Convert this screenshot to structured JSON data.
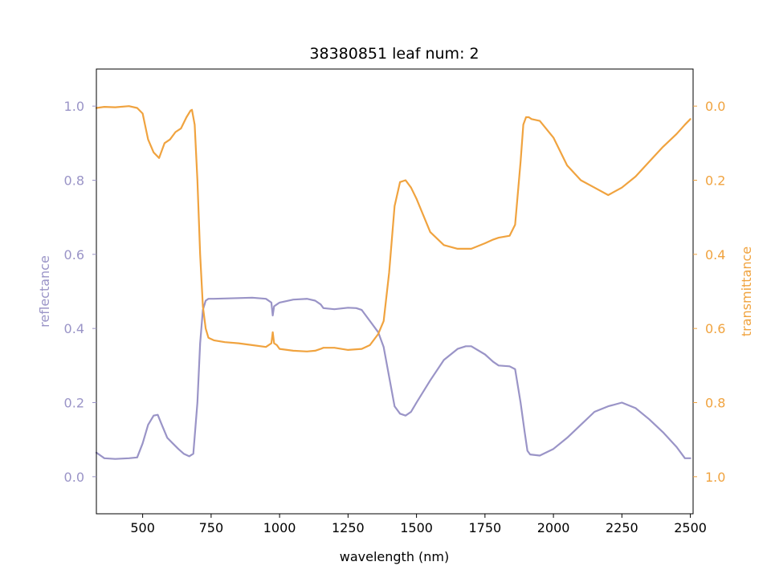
{
  "chart_data": {
    "type": "line",
    "title": "38380851 leaf num: 2",
    "xlabel": "wavelength (nm)",
    "xlim": [
      331,
      2510
    ],
    "xticks": [
      "500",
      "750",
      "1000",
      "1250",
      "1500",
      "1750",
      "2000",
      "2250",
      "2500"
    ],
    "grid": false,
    "left_axis": {
      "label": "reflectance",
      "color": "#9a94c7",
      "ylim": [
        -0.1,
        1.1
      ],
      "ticks": [
        "0.0",
        "0.2",
        "0.4",
        "0.6",
        "0.8",
        "1.0"
      ]
    },
    "right_axis": {
      "label": "transmittance",
      "color": "#f0a33f",
      "ylim": [
        1.1,
        -0.1
      ],
      "inverted": true,
      "ticks": [
        "0.0",
        "0.2",
        "0.4",
        "0.6",
        "0.8",
        "1.0"
      ]
    },
    "series": [
      {
        "axis": "left",
        "color": "#9a94c7",
        "x": [
          331,
          360,
          400,
          450,
          480,
          500,
          520,
          540,
          555,
          570,
          590,
          610,
          630,
          650,
          670,
          685,
          700,
          710,
          720,
          730,
          740,
          760,
          800,
          850,
          900,
          950,
          970,
          975,
          980,
          990,
          1000,
          1050,
          1100,
          1130,
          1150,
          1160,
          1200,
          1250,
          1280,
          1300,
          1330,
          1360,
          1380,
          1400,
          1420,
          1440,
          1460,
          1480,
          1500,
          1550,
          1600,
          1650,
          1680,
          1700,
          1750,
          1780,
          1800,
          1840,
          1860,
          1880,
          1895,
          1905,
          1915,
          1950,
          2000,
          2050,
          2100,
          2150,
          2200,
          2250,
          2300,
          2350,
          2400,
          2450,
          2480,
          2500
        ],
        "y": [
          0.065,
          0.05,
          0.048,
          0.05,
          0.052,
          0.09,
          0.14,
          0.165,
          0.167,
          0.14,
          0.105,
          0.09,
          0.075,
          0.062,
          0.055,
          0.062,
          0.2,
          0.36,
          0.45,
          0.475,
          0.48,
          0.48,
          0.481,
          0.482,
          0.483,
          0.48,
          0.47,
          0.435,
          0.46,
          0.465,
          0.47,
          0.478,
          0.48,
          0.475,
          0.465,
          0.455,
          0.452,
          0.456,
          0.455,
          0.45,
          0.42,
          0.39,
          0.35,
          0.27,
          0.19,
          0.17,
          0.165,
          0.175,
          0.2,
          0.26,
          0.315,
          0.345,
          0.352,
          0.352,
          0.33,
          0.31,
          0.3,
          0.298,
          0.29,
          0.2,
          0.12,
          0.07,
          0.06,
          0.057,
          0.075,
          0.105,
          0.14,
          0.175,
          0.19,
          0.2,
          0.185,
          0.155,
          0.12,
          0.08,
          0.05,
          0.05
        ]
      },
      {
        "axis": "right",
        "color": "#f0a33f",
        "x": [
          331,
          360,
          400,
          450,
          480,
          500,
          520,
          540,
          560,
          580,
          600,
          620,
          640,
          660,
          675,
          680,
          690,
          700,
          710,
          720,
          730,
          740,
          760,
          800,
          850,
          900,
          950,
          970,
          975,
          980,
          990,
          1000,
          1050,
          1100,
          1130,
          1150,
          1160,
          1200,
          1250,
          1300,
          1330,
          1360,
          1380,
          1400,
          1420,
          1440,
          1460,
          1480,
          1500,
          1550,
          1600,
          1650,
          1700,
          1750,
          1780,
          1800,
          1840,
          1860,
          1880,
          1890,
          1900,
          1910,
          1920,
          1950,
          2000,
          2050,
          2100,
          2150,
          2200,
          2250,
          2300,
          2350,
          2400,
          2450,
          2480,
          2500
        ],
        "y": [
          0.005,
          0.002,
          0.003,
          0.0,
          0.005,
          0.02,
          0.09,
          0.125,
          0.14,
          0.1,
          0.09,
          0.07,
          0.06,
          0.03,
          0.012,
          0.01,
          0.05,
          0.2,
          0.4,
          0.54,
          0.6,
          0.625,
          0.632,
          0.637,
          0.64,
          0.645,
          0.65,
          0.64,
          0.61,
          0.64,
          0.645,
          0.655,
          0.66,
          0.662,
          0.66,
          0.655,
          0.652,
          0.652,
          0.658,
          0.655,
          0.645,
          0.615,
          0.58,
          0.45,
          0.27,
          0.205,
          0.2,
          0.22,
          0.25,
          0.34,
          0.375,
          0.385,
          0.385,
          0.37,
          0.36,
          0.355,
          0.35,
          0.32,
          0.15,
          0.05,
          0.03,
          0.03,
          0.035,
          0.04,
          0.085,
          0.16,
          0.2,
          0.22,
          0.24,
          0.22,
          0.19,
          0.15,
          0.11,
          0.075,
          0.05,
          0.035
        ]
      }
    ]
  }
}
